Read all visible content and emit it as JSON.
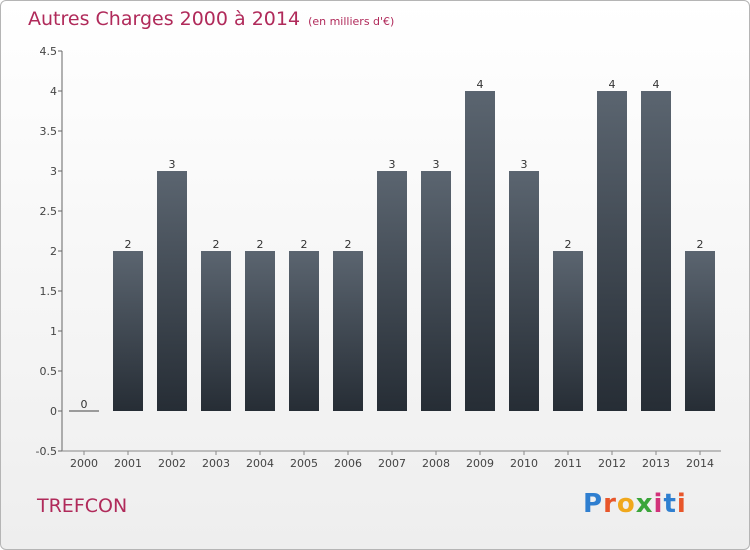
{
  "header": {
    "title": "Autres Charges 2000 à 2014",
    "subtitle": "(en milliers d'€)"
  },
  "footer": {
    "commune": "TREFCON",
    "logo_text": "Proxiti"
  },
  "colors": {
    "title": "#b02a5a",
    "bar_top": "#5b6570",
    "bar_bottom": "#262d35"
  },
  "chart_data": {
    "type": "bar",
    "title": "Autres Charges 2000 à 2014",
    "subtitle": "(en milliers d'€)",
    "categories": [
      "2000",
      "2001",
      "2002",
      "2003",
      "2004",
      "2005",
      "2006",
      "2007",
      "2008",
      "2009",
      "2010",
      "2011",
      "2012",
      "2013",
      "2014"
    ],
    "values": [
      0,
      2,
      3,
      2,
      2,
      2,
      2,
      3,
      3,
      4,
      3,
      2,
      4,
      4,
      2
    ],
    "data_labels": [
      "0",
      "2",
      "3",
      "2",
      "2",
      "2",
      "2",
      "3",
      "3",
      "4",
      "3",
      "2",
      "4",
      "4",
      "2"
    ],
    "yticks": [
      "-0.5",
      "0",
      "0.5",
      "1",
      "1.5",
      "2",
      "2.5",
      "3",
      "3.5",
      "4",
      "4.5"
    ],
    "ylim": [
      -0.5,
      4.5
    ],
    "grid": false,
    "legend": "none"
  }
}
